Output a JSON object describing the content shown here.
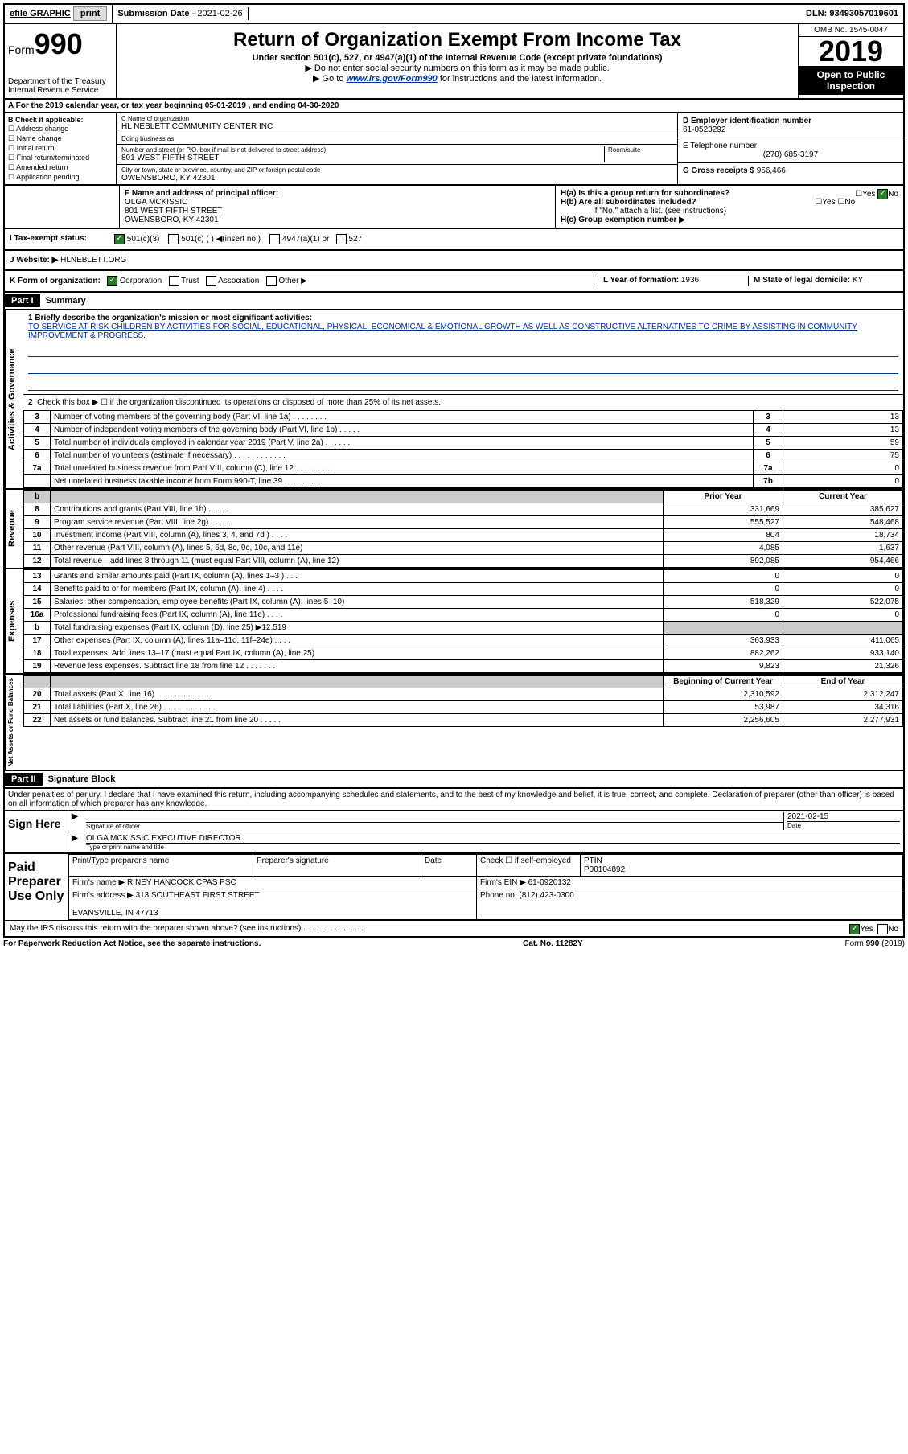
{
  "top": {
    "efile": "efile GRAPHIC",
    "print": "print",
    "sub_label": "Submission Date -",
    "sub_date": "2021-02-26",
    "dln": "DLN: 93493057019601"
  },
  "header": {
    "form": "Form",
    "form_no": "990",
    "dept": "Department of the Treasury\nInternal Revenue Service",
    "title": "Return of Organization Exempt From Income Tax",
    "sub1": "Under section 501(c), 527, or 4947(a)(1) of the Internal Revenue Code (except private foundations)",
    "sub2": "▶ Do not enter social security numbers on this form as it may be made public.",
    "sub3_pre": "▶ Go to ",
    "sub3_link": "www.irs.gov/Form990",
    "sub3_post": " for instructions and the latest information.",
    "omb": "OMB No. 1545-0047",
    "year": "2019",
    "open": "Open to Public Inspection"
  },
  "a": "A For the 2019 calendar year, or tax year beginning 05-01-2019     , and ending 04-30-2020",
  "b": {
    "label": "B Check if applicable:",
    "items": [
      "☐ Address change",
      "☐ Name change",
      "☐ Initial return",
      "☐ Final return/terminated",
      "☐ Amended return",
      "☐ Application pending"
    ]
  },
  "c": {
    "name_label": "C Name of organization",
    "name": "HL NEBLETT COMMUNITY CENTER INC",
    "dba_label": "Doing business as",
    "addr_label": "Number and street (or P.O. box if mail is not delivered to street address)",
    "room_label": "Room/suite",
    "addr": "801 WEST FIFTH STREET",
    "city_label": "City or town, state or province, country, and ZIP or foreign postal code",
    "city": "OWENSBORO, KY  42301"
  },
  "d": {
    "label": "D Employer identification number",
    "val": "61-0523292"
  },
  "e": {
    "label": "E Telephone number",
    "val": "(270) 685-3197"
  },
  "g": {
    "label": "G Gross receipts $",
    "val": "956,466"
  },
  "f": {
    "label": "F  Name and address of principal officer:",
    "name": "OLGA MCKISSIC",
    "addr1": "801 WEST FIFTH STREET",
    "addr2": "OWENSBORO, KY  42301"
  },
  "h": {
    "a": "H(a)  Is this a group return for subordinates?",
    "b": "H(b)  Are all subordinates included?",
    "note": "If \"No,\" attach a list. (see instructions)",
    "c": "H(c)  Group exemption number ▶"
  },
  "i": {
    "label": "I  Tax-exempt status:",
    "opts": [
      "501(c)(3)",
      "501(c) (   ) ◀(insert no.)",
      "4947(a)(1) or",
      "527"
    ]
  },
  "j": {
    "label": "J   Website: ▶",
    "val": " HLNEBLETT.ORG"
  },
  "k": {
    "label": "K Form of organization:",
    "opts": [
      "Corporation",
      "Trust",
      "Association",
      "Other ▶"
    ]
  },
  "l": {
    "label": "L Year of formation:",
    "val": "1936"
  },
  "m": {
    "label": "M State of legal domicile:",
    "val": "KY"
  },
  "part1": {
    "header": "Part I",
    "title": "Summary",
    "q1": "1  Briefly describe the organization's mission or most significant activities:",
    "mission": "TO SERVICE AT RISK CHILDREN BY ACTIVITIES FOR SOCIAL, EDUCATIONAL, PHYSICAL, ECONOMICAL & EMOTIONAL GROWTH AS WELL AS CONSTRUCTIVE ALTERNATIVES TO CRIME BY ASSISTING IN COMMUNITY IMPROVEMENT & PROGRESS.",
    "q2": "Check this box ▶ ☐  if the organization discontinued its operations or disposed of more than 25% of its net assets.",
    "rows_gov": [
      {
        "n": "3",
        "t": "Number of voting members of the governing body (Part VI, line 1a)   .    .    .    .    .    .    .    .",
        "box": "3",
        "v": "13"
      },
      {
        "n": "4",
        "t": "Number of independent voting members of the governing body (Part VI, line 1b)   .    .    .    .    .",
        "box": "4",
        "v": "13"
      },
      {
        "n": "5",
        "t": "Total number of individuals employed in calendar year 2019 (Part V, line 2a)   .    .    .    .    .    .",
        "box": "5",
        "v": "59"
      },
      {
        "n": "6",
        "t": "Total number of volunteers (estimate if necessary)    .    .    .    .    .    .    .    .    .    .    .    .",
        "box": "6",
        "v": "75"
      },
      {
        "n": "7a",
        "t": "Total unrelated business revenue from Part VIII, column (C), line 12   .    .    .    .    .    .    .    .",
        "box": "7a",
        "v": "0"
      },
      {
        "n": "",
        "t": "Net unrelated business taxable income from Form 990-T, line 39    .    .    .    .    .    .    .    .    .",
        "box": "7b",
        "v": "0"
      }
    ],
    "col_headers": {
      "b": "b",
      "py": "Prior Year",
      "cy": "Current Year"
    },
    "rows_rev": [
      {
        "n": "8",
        "t": "Contributions and grants (Part VIII, line 1h)   .    .    .    .    .",
        "py": "331,669",
        "cy": "385,627"
      },
      {
        "n": "9",
        "t": "Program service revenue (Part VIII, line 2g)   .    .    .    .    .",
        "py": "555,527",
        "cy": "548,468"
      },
      {
        "n": "10",
        "t": "Investment income (Part VIII, column (A), lines 3, 4, and 7d )   .    .    .    .",
        "py": "804",
        "cy": "18,734"
      },
      {
        "n": "11",
        "t": "Other revenue (Part VIII, column (A), lines 5, 6d, 8c, 9c, 10c, and 11e)",
        "py": "4,085",
        "cy": "1,637"
      },
      {
        "n": "12",
        "t": "Total revenue—add lines 8 through 11 (must equal Part VIII, column (A), line 12)",
        "py": "892,085",
        "cy": "954,466"
      }
    ],
    "rows_exp": [
      {
        "n": "13",
        "t": "Grants and similar amounts paid (Part IX, column (A), lines 1–3 )   .    .    .",
        "py": "0",
        "cy": "0"
      },
      {
        "n": "14",
        "t": "Benefits paid to or for members (Part IX, column (A), line 4)   .    .    .    .",
        "py": "0",
        "cy": "0"
      },
      {
        "n": "15",
        "t": "Salaries, other compensation, employee benefits (Part IX, column (A), lines 5–10)",
        "py": "518,329",
        "cy": "522,075"
      },
      {
        "n": "16a",
        "t": "Professional fundraising fees (Part IX, column (A), line 11e)   .    .    .    .",
        "py": "0",
        "cy": "0"
      },
      {
        "n": "b",
        "t": "Total fundraising expenses (Part IX, column (D), line 25) ▶12,519",
        "py": "",
        "cy": "",
        "grey": true
      },
      {
        "n": "17",
        "t": "Other expenses (Part IX, column (A), lines 11a–11d, 11f–24e)   .    .    .    .",
        "py": "363,933",
        "cy": "411,065"
      },
      {
        "n": "18",
        "t": "Total expenses. Add lines 13–17 (must equal Part IX, column (A), line 25)",
        "py": "882,262",
        "cy": "933,140"
      },
      {
        "n": "19",
        "t": "Revenue less expenses. Subtract line 18 from line 12   .    .    .    .    .    .    .",
        "py": "9,823",
        "cy": "21,326"
      }
    ],
    "col_headers2": {
      "by": "Beginning of Current Year",
      "ey": "End of Year"
    },
    "rows_net": [
      {
        "n": "20",
        "t": "Total assets (Part X, line 16)   .    .    .    .    .    .    .    .    .    .    .    .    .",
        "py": "2,310,592",
        "cy": "2,312,247"
      },
      {
        "n": "21",
        "t": "Total liabilities (Part X, line 26)   .    .    .    .    .    .    .    .    .    .    .    .",
        "py": "53,987",
        "cy": "34,316"
      },
      {
        "n": "22",
        "t": "Net assets or fund balances. Subtract line 21 from line 20   .    .    .    .    .",
        "py": "2,256,605",
        "cy": "2,277,931"
      }
    ],
    "vert": {
      "gov": "Activities & Governance",
      "rev": "Revenue",
      "exp": "Expenses",
      "net": "Net Assets or Fund Balances"
    }
  },
  "part2": {
    "header": "Part II",
    "title": "Signature Block",
    "decl": "Under penalties of perjury, I declare that I have examined this return, including accompanying schedules and statements, and to the best of my knowledge and belief, it is true, correct, and complete. Declaration of preparer (other than officer) is based on all information of which preparer has any knowledge.",
    "sign_here": "Sign Here",
    "sig_officer": "Signature of officer",
    "sig_date": "2021-02-15",
    "date_label": "Date",
    "officer_name": "OLGA MCKISSIC  EXECUTIVE DIRECTOR",
    "type_name": "Type or print name and title",
    "paid": "Paid Preparer Use Only",
    "prep_name_label": "Print/Type preparer's name",
    "prep_sig_label": "Preparer's signature",
    "prep_date_label": "Date",
    "self_emp": "Check ☐ if self-employed",
    "ptin_label": "PTIN",
    "ptin": "P00104892",
    "firm_name_label": "Firm's name    ▶",
    "firm_name": "RINEY HANCOCK CPAS PSC",
    "firm_ein_label": "Firm's EIN ▶",
    "firm_ein": "61-0920132",
    "firm_addr_label": "Firm's address ▶",
    "firm_addr1": "313 SOUTHEAST FIRST STREET",
    "firm_addr2": "EVANSVILLE, IN  47713",
    "phone_label": "Phone no.",
    "phone": "(812) 423-0300",
    "discuss": "May the IRS discuss this return with the preparer shown above? (see instructions)    .    .    .    .    .    .    .    .    .    .    .    .    .    ."
  },
  "footer": {
    "left": "For Paperwork Reduction Act Notice, see the separate instructions.",
    "mid": "Cat. No. 11282Y",
    "right": "Form 990 (2019)"
  }
}
